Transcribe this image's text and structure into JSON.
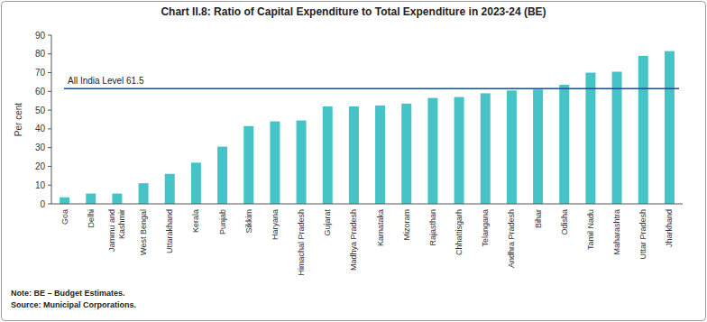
{
  "chart_data": {
    "type": "bar",
    "title": "Chart II.8: Ratio of Capital Expenditure to Total Expenditure in 2023-24 (BE)",
    "y_label": "Per cent",
    "categories": [
      "Goa",
      "Delhi",
      "Jammu and Kashmir",
      "West Bengal",
      "Uttarakhand",
      "Kerala",
      "Punjab",
      "Sikkim",
      "Haryana",
      "Himachal Pradesh",
      "Gujarat",
      "Madhya Pradesh",
      "Karnataka",
      "Mizoram",
      "Rajasthan",
      "Chhattisgarh",
      "Telangana",
      "Andhra Pradesh",
      "Bihar",
      "Odisha",
      "Tamil Nadu",
      "Maharashtra",
      "Uttar Pradesh",
      "Jharkhand"
    ],
    "values": [
      3.5,
      5.5,
      5.5,
      11,
      16,
      22,
      30.5,
      41.5,
      44,
      44.5,
      52,
      52,
      52.5,
      53.5,
      56.5,
      57,
      59,
      60.5,
      61,
      63.5,
      70,
      70.5,
      79,
      81.5
    ],
    "color": "#45c3c6",
    "ylim": [
      0,
      90
    ],
    "yticks": [
      0,
      10,
      20,
      30,
      40,
      50,
      60,
      70,
      80,
      90
    ],
    "grid": false,
    "reference_line": {
      "value": 61.5,
      "label": "All India Level 61.5",
      "color": "#1f4e8c"
    },
    "notes": [
      "Note: BE – Budget Estimates.",
      "Source: Municipal Corporations."
    ]
  }
}
